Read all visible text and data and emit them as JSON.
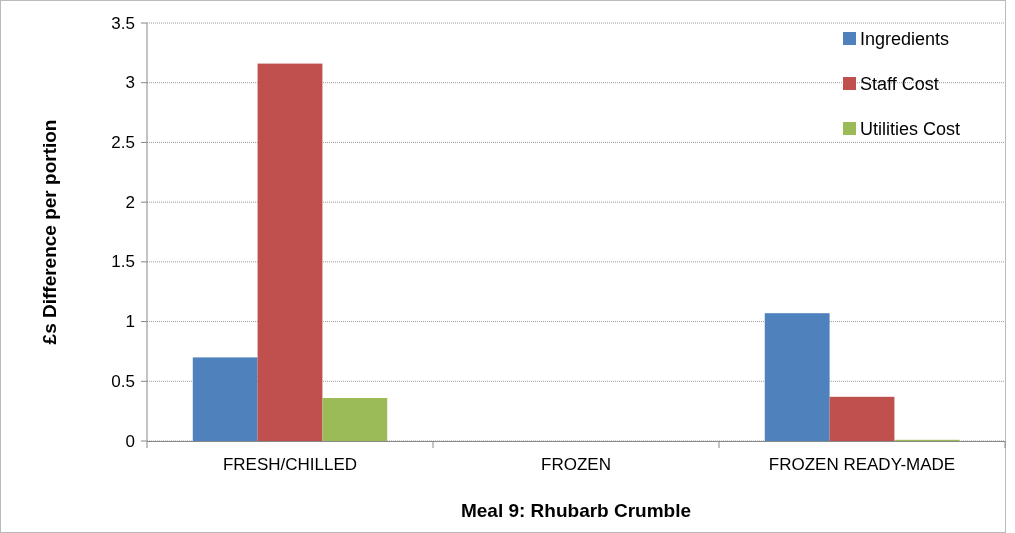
{
  "chart_data": {
    "type": "bar",
    "xlabel": "Meal 9: Rhubarb Crumble",
    "ylabel": "£s Difference per portion",
    "categories": [
      "FRESH/CHILLED",
      "FROZEN",
      "FROZEN READY-MADE"
    ],
    "series": [
      {
        "name": "Ingredients",
        "color": "#4f81bd",
        "values": [
          0.7,
          0,
          1.07
        ]
      },
      {
        "name": "Staff Cost",
        "color": "#c0504d",
        "values": [
          3.16,
          0,
          0.37
        ]
      },
      {
        "name": "Utilities Cost",
        "color": "#9bbb59",
        "values": [
          0.36,
          0,
          0.01
        ]
      }
    ],
    "ylim": [
      0,
      3.5
    ],
    "yticks": [
      0,
      0.5,
      1,
      1.5,
      2,
      2.5,
      3,
      3.5
    ],
    "grid": "y",
    "legend": "top right"
  }
}
